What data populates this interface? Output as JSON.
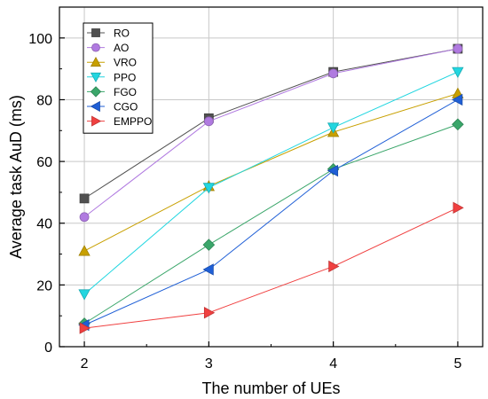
{
  "chart_data": {
    "type": "line",
    "xlabel": "The number of UEs",
    "ylabel": "Average task AuD (ms)",
    "x": [
      2,
      3,
      4,
      5
    ],
    "xlim": [
      1.8,
      5.2
    ],
    "ylim": [
      0,
      110
    ],
    "xticks": [
      2,
      3,
      4,
      5
    ],
    "yticks": [
      0,
      20,
      40,
      60,
      80,
      100
    ],
    "grid": true,
    "legend_position": "top-left",
    "series": [
      {
        "name": "RO",
        "marker": "square",
        "color": "#505050",
        "values": [
          48,
          74,
          89,
          96.5
        ]
      },
      {
        "name": "AO",
        "marker": "circle",
        "color": "#b07ae0",
        "values": [
          42,
          73,
          88.5,
          96.5
        ]
      },
      {
        "name": "VRO",
        "marker": "triangle-up",
        "color": "#c8a000",
        "values": [
          31,
          52,
          69.5,
          82
        ]
      },
      {
        "name": "PPO",
        "marker": "triangle-down",
        "color": "#22d6e0",
        "values": [
          17,
          51.5,
          71,
          89
        ]
      },
      {
        "name": "FGO",
        "marker": "diamond",
        "color": "#3aa66a",
        "values": [
          7.5,
          33,
          57.5,
          72
        ]
      },
      {
        "name": "CGO",
        "marker": "triangle-left",
        "color": "#1f5fd6",
        "values": [
          7,
          25,
          57,
          80
        ]
      },
      {
        "name": "EMPPO",
        "marker": "triangle-right",
        "color": "#f04040",
        "values": [
          6,
          11,
          26,
          45
        ]
      }
    ]
  }
}
